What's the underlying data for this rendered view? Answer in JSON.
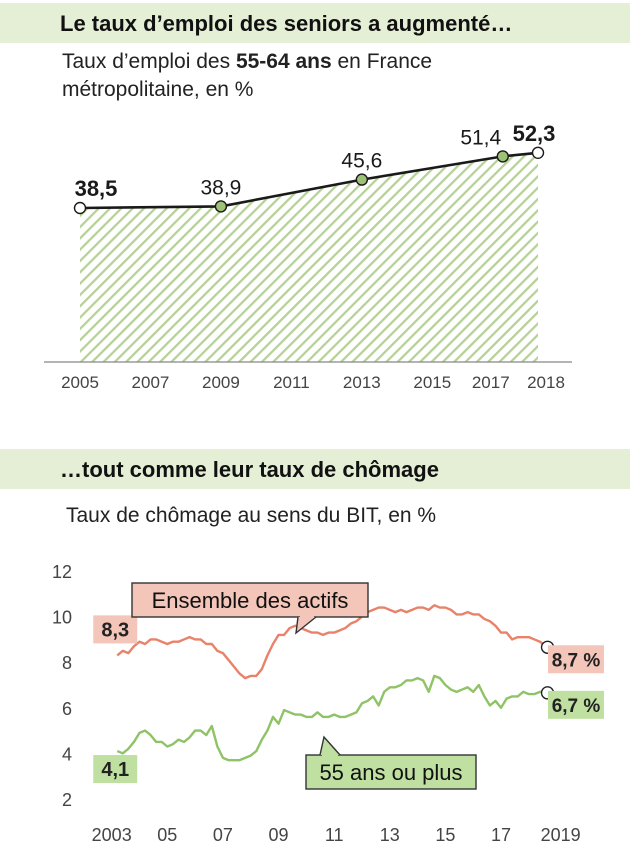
{
  "colors": {
    "band_bg": "#e4efd6",
    "area_hatch": "#b5d196",
    "line_dark": "#1a1a1a",
    "point_fill": "#9dc277",
    "unemp_all": "#e8826a",
    "unemp_all_label_bg": "#f4c5b9",
    "unemp_55": "#8fc366",
    "unemp_55_label_bg": "#bfe0a0",
    "axis_text": "#444444"
  },
  "panels": {
    "employment": {
      "heading": "Le taux d’emploi des seniors a augmenté…",
      "subtitle_parts": [
        "Taux d’emploi des ",
        "55-64 ans",
        " en France"
      ],
      "subtitle_line2": "métropolitaine, en %"
    },
    "unemployment": {
      "heading": "…tout comme leur taux de chômage",
      "subtitle": "Taux de chômage au sens du BIT, en %"
    }
  },
  "chart_data": [
    {
      "type": "area",
      "x_tick_labels": [
        "2005",
        "2007",
        "2009",
        "2011",
        "2013",
        "2015",
        "2017",
        "2018"
      ],
      "xlim": [
        2005,
        2018
      ],
      "ylim": [
        0,
        60
      ],
      "grid": false,
      "series": [
        {
          "x": [
            2005,
            2009,
            2013,
            2017,
            2018
          ],
          "y": [
            38.5,
            38.9,
            45.6,
            51.4,
            52.3
          ],
          "labels": [
            "38,5",
            "38,9",
            "45,6",
            "51,4",
            "52,3"
          ],
          "bold_labels": [
            true,
            false,
            false,
            false,
            true
          ]
        }
      ]
    },
    {
      "type": "line",
      "y_tick_labels": [
        "2",
        "4",
        "6",
        "8",
        "10",
        "12"
      ],
      "y_ticks": [
        2,
        4,
        6,
        8,
        10,
        12
      ],
      "x_tick_labels": [
        "2003",
        "05",
        "07",
        "09",
        "11",
        "13",
        "15",
        "17",
        "2019"
      ],
      "x_ticks": [
        2003,
        2005,
        2007,
        2009,
        2011,
        2013,
        2015,
        2017,
        2019
      ],
      "xlim": [
        2002.4,
        2019.3
      ],
      "ylim": [
        1.6,
        12.4
      ],
      "grid": false,
      "series": [
        {
          "name": "Ensemble des actifs",
          "start_label": "8,3",
          "end_label": "8,7 %",
          "x": [
            2003.2,
            2003.4,
            2003.6,
            2003.8,
            2004.0,
            2004.2,
            2004.4,
            2004.6,
            2004.8,
            2005.0,
            2005.2,
            2005.4,
            2005.6,
            2005.8,
            2006.0,
            2006.2,
            2006.4,
            2006.6,
            2006.8,
            2007.0,
            2007.2,
            2007.4,
            2007.6,
            2007.8,
            2008.0,
            2008.2,
            2008.4,
            2008.6,
            2008.8,
            2009.0,
            2009.2,
            2009.4,
            2009.6,
            2009.8,
            2010.0,
            2010.2,
            2010.4,
            2010.6,
            2010.8,
            2011.0,
            2011.2,
            2011.4,
            2011.6,
            2011.8,
            2012.0,
            2012.2,
            2012.4,
            2012.6,
            2012.8,
            2013.0,
            2013.2,
            2013.4,
            2013.6,
            2013.8,
            2014.0,
            2014.2,
            2014.4,
            2014.6,
            2014.8,
            2015.0,
            2015.2,
            2015.4,
            2015.6,
            2015.8,
            2016.0,
            2016.2,
            2016.4,
            2016.6,
            2016.8,
            2017.0,
            2017.2,
            2017.4,
            2017.6,
            2017.8,
            2018.0,
            2018.2,
            2018.4,
            2018.6
          ],
          "y": [
            8.3,
            8.5,
            8.4,
            8.7,
            8.9,
            8.8,
            9.0,
            9.0,
            8.9,
            8.8,
            8.9,
            8.9,
            9.0,
            9.1,
            9.0,
            9.0,
            8.8,
            8.8,
            8.5,
            8.4,
            8.1,
            7.8,
            7.5,
            7.3,
            7.4,
            7.4,
            7.7,
            8.3,
            8.8,
            9.2,
            9.2,
            9.5,
            9.6,
            9.5,
            9.4,
            9.3,
            9.3,
            9.2,
            9.3,
            9.3,
            9.4,
            9.5,
            9.7,
            9.8,
            10.0,
            10.2,
            10.3,
            10.4,
            10.4,
            10.3,
            10.2,
            10.3,
            10.2,
            10.3,
            10.4,
            10.4,
            10.3,
            10.5,
            10.4,
            10.4,
            10.3,
            10.1,
            10.1,
            10.2,
            10.1,
            10.1,
            9.9,
            9.8,
            9.6,
            9.3,
            9.3,
            9.0,
            9.1,
            9.1,
            9.1,
            9.0,
            8.9,
            8.7
          ]
        },
        {
          "name": "55 ans ou plus",
          "start_label": "4,1",
          "end_label": "6,7 %",
          "x": [
            2003.2,
            2003.4,
            2003.6,
            2003.8,
            2004.0,
            2004.2,
            2004.4,
            2004.6,
            2004.8,
            2005.0,
            2005.2,
            2005.4,
            2005.6,
            2005.8,
            2006.0,
            2006.2,
            2006.4,
            2006.6,
            2006.8,
            2007.0,
            2007.2,
            2007.4,
            2007.6,
            2007.8,
            2008.0,
            2008.2,
            2008.4,
            2008.6,
            2008.8,
            2009.0,
            2009.2,
            2009.4,
            2009.6,
            2009.8,
            2010.0,
            2010.2,
            2010.4,
            2010.6,
            2010.8,
            2011.0,
            2011.2,
            2011.4,
            2011.6,
            2011.8,
            2012.0,
            2012.2,
            2012.4,
            2012.6,
            2012.8,
            2013.0,
            2013.2,
            2013.4,
            2013.6,
            2013.8,
            2014.0,
            2014.2,
            2014.4,
            2014.6,
            2014.8,
            2015.0,
            2015.2,
            2015.4,
            2015.6,
            2015.8,
            2016.0,
            2016.2,
            2016.4,
            2016.6,
            2016.8,
            2017.0,
            2017.2,
            2017.4,
            2017.6,
            2017.8,
            2018.0,
            2018.2,
            2018.4,
            2018.6
          ],
          "y": [
            4.1,
            4.0,
            4.2,
            4.5,
            4.9,
            5.0,
            4.8,
            4.5,
            4.5,
            4.3,
            4.4,
            4.6,
            4.5,
            4.7,
            5.0,
            5.0,
            4.8,
            5.2,
            4.3,
            3.8,
            3.7,
            3.7,
            3.7,
            3.8,
            3.9,
            4.1,
            4.6,
            5.0,
            5.6,
            5.3,
            5.9,
            5.8,
            5.7,
            5.7,
            5.6,
            5.6,
            5.8,
            5.6,
            5.6,
            5.7,
            5.6,
            5.6,
            5.7,
            5.8,
            6.2,
            6.3,
            6.5,
            6.1,
            6.7,
            6.9,
            6.9,
            7.0,
            7.2,
            7.2,
            7.3,
            7.2,
            6.7,
            7.4,
            7.3,
            7.0,
            6.8,
            6.7,
            6.8,
            6.9,
            6.7,
            7.0,
            6.5,
            6.1,
            6.3,
            6.0,
            6.4,
            6.5,
            6.5,
            6.7,
            6.6,
            6.6,
            6.7,
            6.7
          ]
        }
      ]
    }
  ]
}
